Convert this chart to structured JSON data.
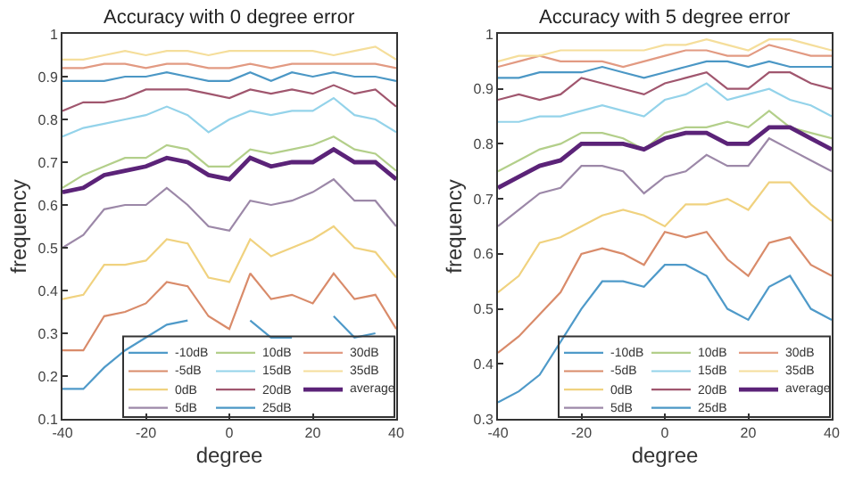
{
  "chart_data": [
    {
      "type": "line",
      "title": "Accuracy with 0 degree error",
      "xlabel": "degree",
      "ylabel": "frequency",
      "x": [
        -40,
        -35,
        -30,
        -25,
        -20,
        -15,
        -10,
        -5,
        0,
        5,
        10,
        15,
        20,
        25,
        30,
        35,
        40
      ],
      "xlim": [
        -40,
        40
      ],
      "xticks": [
        -40,
        -20,
        0,
        20,
        40
      ],
      "ylim": [
        0.1,
        1
      ],
      "yticks": [
        0.1,
        0.2,
        0.3,
        0.4,
        0.5,
        0.6,
        0.7,
        0.8,
        0.9,
        1
      ],
      "grid": false,
      "legend": "bottom right",
      "series": [
        {
          "name": "-10dB",
          "color": "#4f9ac9",
          "values": [
            0.17,
            0.17,
            0.22,
            0.26,
            0.29,
            0.32,
            0.33,
            null,
            null,
            0.33,
            0.29,
            0.29,
            null,
            0.34,
            0.29,
            0.3,
            null
          ]
        },
        {
          "name": "-5dB",
          "color": "#d98b6a",
          "values": [
            0.26,
            0.26,
            0.34,
            0.35,
            0.37,
            0.42,
            0.41,
            0.34,
            0.31,
            0.44,
            0.38,
            0.39,
            0.37,
            0.44,
            0.38,
            0.39,
            0.31
          ]
        },
        {
          "name": "0dB",
          "color": "#f0d27f",
          "values": [
            0.38,
            0.39,
            0.46,
            0.46,
            0.47,
            0.52,
            0.51,
            0.43,
            0.42,
            0.52,
            0.48,
            0.5,
            0.52,
            0.55,
            0.5,
            0.49,
            0.43
          ]
        },
        {
          "name": "5dB",
          "color": "#9c88a8",
          "values": [
            0.5,
            0.53,
            0.59,
            0.6,
            0.6,
            0.64,
            0.6,
            0.55,
            0.54,
            0.61,
            0.6,
            0.61,
            0.63,
            0.66,
            0.61,
            0.61,
            0.55
          ]
        },
        {
          "name": "10dB",
          "color": "#b3cf8a",
          "values": [
            0.64,
            0.67,
            0.69,
            0.71,
            0.71,
            0.74,
            0.73,
            0.69,
            0.69,
            0.73,
            0.72,
            0.73,
            0.74,
            0.76,
            0.73,
            0.72,
            0.68
          ]
        },
        {
          "name": "15dB",
          "color": "#94d3ea",
          "values": [
            0.76,
            0.78,
            0.79,
            0.8,
            0.81,
            0.83,
            0.81,
            0.77,
            0.8,
            0.82,
            0.81,
            0.82,
            0.82,
            0.85,
            0.81,
            0.8,
            0.77
          ]
        },
        {
          "name": "20dB",
          "color": "#a0566e",
          "values": [
            0.82,
            0.84,
            0.84,
            0.85,
            0.87,
            0.87,
            0.87,
            0.86,
            0.85,
            0.87,
            0.86,
            0.87,
            0.86,
            0.88,
            0.86,
            0.87,
            0.83
          ]
        },
        {
          "name": "25dB",
          "color": "#4b97c5",
          "values": [
            0.89,
            0.89,
            0.89,
            0.9,
            0.9,
            0.91,
            0.9,
            0.89,
            0.89,
            0.91,
            0.89,
            0.91,
            0.9,
            0.91,
            0.9,
            0.9,
            0.89
          ]
        },
        {
          "name": "30dB",
          "color": "#e29a82",
          "values": [
            0.92,
            0.92,
            0.93,
            0.93,
            0.92,
            0.93,
            0.93,
            0.92,
            0.92,
            0.93,
            0.92,
            0.93,
            0.93,
            0.93,
            0.93,
            0.93,
            0.92
          ]
        },
        {
          "name": "35dB",
          "color": "#f5de9b",
          "values": [
            0.94,
            0.94,
            0.95,
            0.96,
            0.95,
            0.96,
            0.96,
            0.95,
            0.96,
            0.96,
            0.96,
            0.96,
            0.96,
            0.95,
            0.96,
            0.97,
            0.94
          ]
        },
        {
          "name": "average",
          "color": "#5b2378",
          "values": [
            0.63,
            0.64,
            0.67,
            0.68,
            0.69,
            0.71,
            0.7,
            0.67,
            0.66,
            0.71,
            0.69,
            0.7,
            0.7,
            0.73,
            0.7,
            0.7,
            0.66
          ]
        }
      ]
    },
    {
      "type": "line",
      "title": "Accuracy with 5 degree error",
      "xlabel": "degree",
      "ylabel": "frequency",
      "x": [
        -40,
        -35,
        -30,
        -25,
        -20,
        -15,
        -10,
        -5,
        0,
        5,
        10,
        15,
        20,
        25,
        30,
        35,
        40
      ],
      "xlim": [
        -40,
        40
      ],
      "xticks": [
        -40,
        -20,
        0,
        20,
        40
      ],
      "ylim": [
        0.3,
        1
      ],
      "yticks": [
        0.3,
        0.4,
        0.5,
        0.6,
        0.7,
        0.8,
        0.9,
        1
      ],
      "grid": false,
      "legend": "bottom right",
      "series": [
        {
          "name": "-10dB",
          "color": "#4f9ac9",
          "values": [
            0.33,
            0.35,
            0.38,
            0.44,
            0.5,
            0.55,
            0.55,
            0.54,
            0.58,
            0.58,
            0.56,
            0.5,
            0.48,
            0.54,
            0.56,
            0.5,
            0.48
          ]
        },
        {
          "name": "-5dB",
          "color": "#d98b6a",
          "values": [
            0.42,
            0.45,
            0.49,
            0.53,
            0.6,
            0.61,
            0.6,
            0.58,
            0.64,
            0.63,
            0.64,
            0.59,
            0.56,
            0.62,
            0.63,
            0.58,
            0.56
          ]
        },
        {
          "name": "0dB",
          "color": "#f0d27f",
          "values": [
            0.53,
            0.56,
            0.62,
            0.63,
            0.65,
            0.67,
            0.68,
            0.67,
            0.65,
            0.69,
            0.69,
            0.7,
            0.68,
            0.73,
            0.73,
            0.69,
            0.66
          ]
        },
        {
          "name": "5dB",
          "color": "#9c88a8",
          "values": [
            0.65,
            0.68,
            0.71,
            0.72,
            0.76,
            0.76,
            0.75,
            0.71,
            0.74,
            0.75,
            0.78,
            0.76,
            0.76,
            0.81,
            0.79,
            0.77,
            0.75
          ]
        },
        {
          "name": "10dB",
          "color": "#b3cf8a",
          "values": [
            0.75,
            0.77,
            0.79,
            0.8,
            0.82,
            0.82,
            0.81,
            0.79,
            0.82,
            0.83,
            0.83,
            0.84,
            0.83,
            0.86,
            0.83,
            0.82,
            0.81
          ]
        },
        {
          "name": "15dB",
          "color": "#94d3ea",
          "values": [
            0.84,
            0.84,
            0.85,
            0.85,
            0.86,
            0.87,
            0.86,
            0.85,
            0.88,
            0.89,
            0.91,
            0.88,
            0.89,
            0.9,
            0.88,
            0.87,
            0.85
          ]
        },
        {
          "name": "20dB",
          "color": "#a0566e",
          "values": [
            0.88,
            0.89,
            0.88,
            0.89,
            0.92,
            0.91,
            0.9,
            0.89,
            0.91,
            0.92,
            0.93,
            0.9,
            0.9,
            0.93,
            0.93,
            0.91,
            0.9
          ]
        },
        {
          "name": "25dB",
          "color": "#4b97c5",
          "values": [
            0.92,
            0.92,
            0.93,
            0.93,
            0.93,
            0.94,
            0.93,
            0.92,
            0.93,
            0.94,
            0.95,
            0.95,
            0.94,
            0.95,
            0.94,
            0.94,
            0.94
          ]
        },
        {
          "name": "30dB",
          "color": "#e29a82",
          "values": [
            0.94,
            0.95,
            0.96,
            0.95,
            0.95,
            0.95,
            0.94,
            0.95,
            0.96,
            0.97,
            0.97,
            0.96,
            0.96,
            0.98,
            0.97,
            0.96,
            0.96
          ]
        },
        {
          "name": "35dB",
          "color": "#f5de9b",
          "values": [
            0.95,
            0.96,
            0.96,
            0.97,
            0.97,
            0.97,
            0.97,
            0.97,
            0.98,
            0.98,
            0.99,
            0.98,
            0.97,
            0.99,
            0.99,
            0.98,
            0.97
          ]
        },
        {
          "name": "average",
          "color": "#5b2378",
          "values": [
            0.72,
            0.74,
            0.76,
            0.77,
            0.8,
            0.8,
            0.8,
            0.79,
            0.81,
            0.82,
            0.82,
            0.8,
            0.8,
            0.83,
            0.83,
            0.81,
            0.79
          ]
        }
      ]
    }
  ]
}
